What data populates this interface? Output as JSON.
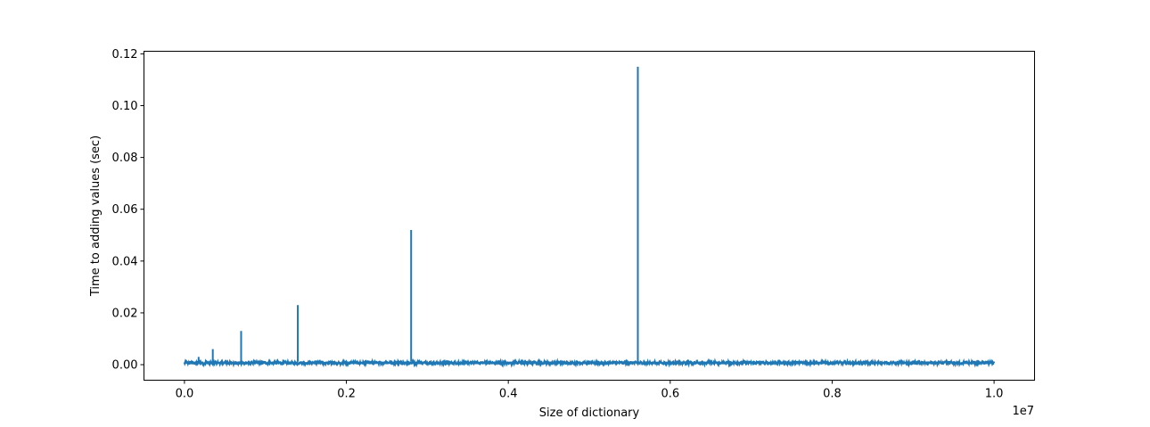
{
  "chart_data": {
    "type": "line",
    "xlabel": "Size of dictionary",
    "ylabel": "Time to adding values (sec)",
    "x_offset_label": "1e7",
    "xlim": [
      -0.05,
      1.05
    ],
    "ylim": [
      -0.006,
      0.121
    ],
    "x_ticks": [
      0.0,
      0.2,
      0.4,
      0.6,
      0.8,
      1.0
    ],
    "x_tick_labels": [
      "0.0",
      "0.2",
      "0.4",
      "0.6",
      "0.8",
      "1.0"
    ],
    "y_ticks": [
      0.0,
      0.02,
      0.04,
      0.06,
      0.08,
      0.1,
      0.12
    ],
    "y_tick_labels": [
      "0.00",
      "0.02",
      "0.04",
      "0.06",
      "0.08",
      "0.10",
      "0.12"
    ],
    "grid": false,
    "series": [
      {
        "color": "#1f77b4",
        "baseline_range": [
          0.0002,
          0.0012
        ],
        "x_extent": [
          0.0,
          1.0
        ],
        "spikes": [
          {
            "x": 0.0175,
            "y": 0.003
          },
          {
            "x": 0.035,
            "y": 0.006
          },
          {
            "x": 0.07,
            "y": 0.013
          },
          {
            "x": 0.14,
            "y": 0.023
          },
          {
            "x": 0.28,
            "y": 0.052
          },
          {
            "x": 0.56,
            "y": 0.115
          }
        ]
      }
    ]
  }
}
